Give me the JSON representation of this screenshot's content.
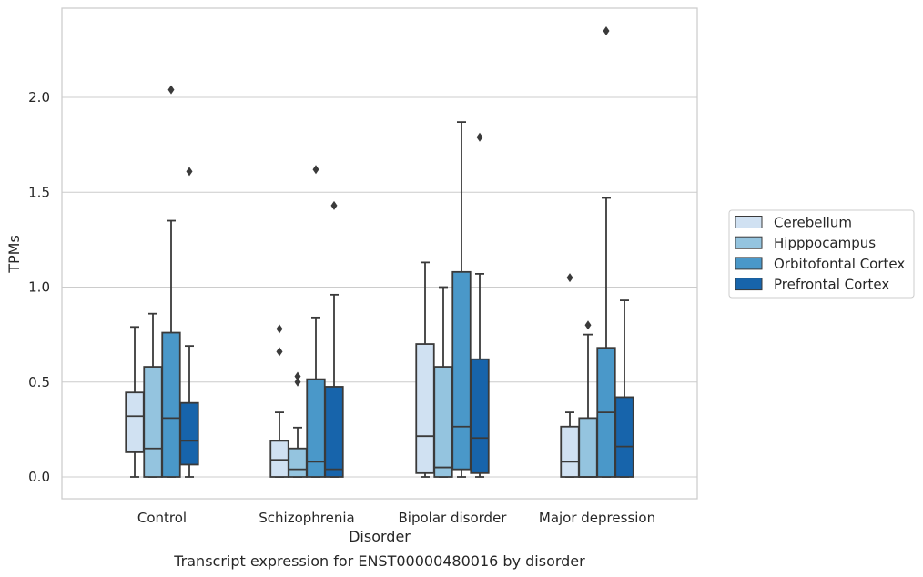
{
  "chart_data": {
    "type": "box",
    "caption": "Transcript expression for ENST00000480016 by disorder",
    "xlabel": "Disorder",
    "ylabel": "TPMs",
    "ylim": [
      -0.11,
      2.46
    ],
    "yticks": [
      0.0,
      0.5,
      1.0,
      1.5,
      2.0
    ],
    "ytick_labels": [
      "0.0",
      "0.5",
      "1.0",
      "1.5",
      "2.0"
    ],
    "grid": "horizontal",
    "legend_position": "right",
    "categories": [
      "Control",
      "Schizophrenia",
      "Bipolar disorder",
      "Major depression"
    ],
    "series": [
      {
        "name": "Cerebellum",
        "color": "#d0e1f2",
        "boxes": [
          {
            "whisker_low": 0.0,
            "q1": 0.13,
            "median": 0.32,
            "q3": 0.445,
            "whisker_high": 0.79,
            "outliers": []
          },
          {
            "whisker_low": 0.0,
            "q1": 0.0,
            "median": 0.09,
            "q3": 0.19,
            "whisker_high": 0.34,
            "outliers": [
              0.66,
              0.78
            ]
          },
          {
            "whisker_low": 0.0,
            "q1": 0.02,
            "median": 0.215,
            "q3": 0.7,
            "whisker_high": 1.13,
            "outliers": []
          },
          {
            "whisker_low": 0.0,
            "q1": 0.0,
            "median": 0.08,
            "q3": 0.265,
            "whisker_high": 0.34,
            "outliers": [
              1.05
            ]
          }
        ]
      },
      {
        "name": "Hipppocampus",
        "color": "#94c4df",
        "boxes": [
          {
            "whisker_low": 0.0,
            "q1": 0.0,
            "median": 0.15,
            "q3": 0.58,
            "whisker_high": 0.86,
            "outliers": []
          },
          {
            "whisker_low": 0.0,
            "q1": 0.0,
            "median": 0.04,
            "q3": 0.15,
            "whisker_high": 0.26,
            "outliers": [
              0.5,
              0.53
            ]
          },
          {
            "whisker_low": 0.0,
            "q1": 0.0,
            "median": 0.05,
            "q3": 0.58,
            "whisker_high": 1.0,
            "outliers": []
          },
          {
            "whisker_low": 0.0,
            "q1": 0.0,
            "median": 0.0,
            "q3": 0.31,
            "whisker_high": 0.75,
            "outliers": [
              0.8
            ]
          }
        ]
      },
      {
        "name": "Orbitofontal Cortex",
        "color": "#4a98c9",
        "boxes": [
          {
            "whisker_low": 0.0,
            "q1": 0.0,
            "median": 0.31,
            "q3": 0.76,
            "whisker_high": 1.35,
            "outliers": [
              2.04
            ]
          },
          {
            "whisker_low": 0.0,
            "q1": 0.0,
            "median": 0.08,
            "q3": 0.515,
            "whisker_high": 0.84,
            "outliers": [
              1.62
            ]
          },
          {
            "whisker_low": 0.0,
            "q1": 0.04,
            "median": 0.265,
            "q3": 1.08,
            "whisker_high": 1.87,
            "outliers": []
          },
          {
            "whisker_low": 0.0,
            "q1": 0.0,
            "median": 0.34,
            "q3": 0.68,
            "whisker_high": 1.47,
            "outliers": [
              2.35
            ]
          }
        ]
      },
      {
        "name": "Prefrontal Cortex",
        "color": "#1764ab",
        "boxes": [
          {
            "whisker_low": 0.0,
            "q1": 0.065,
            "median": 0.19,
            "q3": 0.39,
            "whisker_high": 0.69,
            "outliers": [
              1.61
            ]
          },
          {
            "whisker_low": 0.0,
            "q1": 0.0,
            "median": 0.04,
            "q3": 0.475,
            "whisker_high": 0.96,
            "outliers": [
              1.43
            ]
          },
          {
            "whisker_low": 0.0,
            "q1": 0.02,
            "median": 0.205,
            "q3": 0.62,
            "whisker_high": 1.07,
            "outliers": [
              1.79
            ]
          },
          {
            "whisker_low": 0.0,
            "q1": 0.0,
            "median": 0.16,
            "q3": 0.42,
            "whisker_high": 0.93,
            "outliers": []
          }
        ]
      }
    ]
  }
}
